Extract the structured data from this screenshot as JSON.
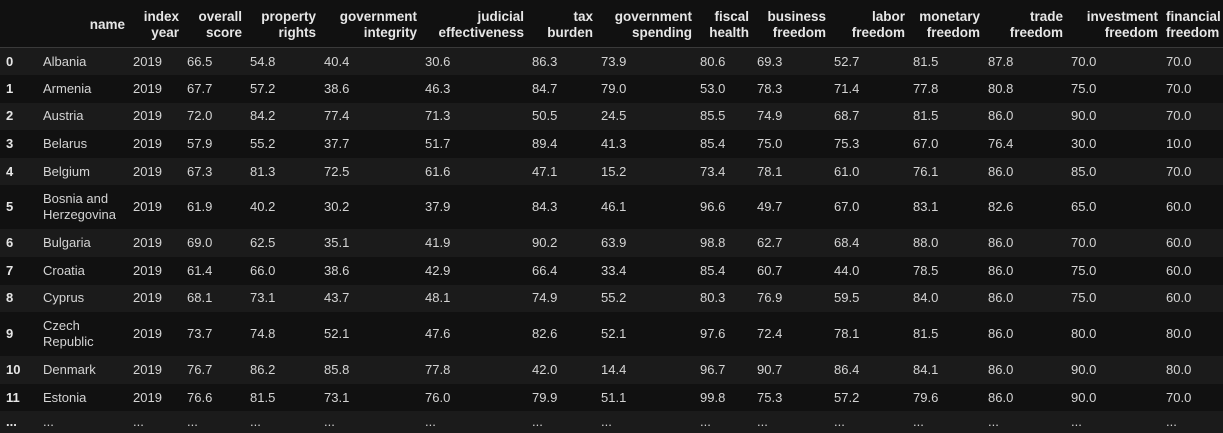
{
  "columns": [
    {
      "key": "idx",
      "label": ""
    },
    {
      "key": "name",
      "label": "name"
    },
    {
      "key": "index_year",
      "label": "index year"
    },
    {
      "key": "overall_score",
      "label": "overall score"
    },
    {
      "key": "property_rights",
      "label": "property rights"
    },
    {
      "key": "government_integrity",
      "label": "government integrity"
    },
    {
      "key": "judicial_effectiveness",
      "label": "judicial effectiveness"
    },
    {
      "key": "tax_burden",
      "label": "tax burden"
    },
    {
      "key": "government_spending",
      "label": "government spending"
    },
    {
      "key": "fiscal_health",
      "label": "fiscal health"
    },
    {
      "key": "business_freedom",
      "label": "business freedom"
    },
    {
      "key": "labor_freedom",
      "label": "labor freedom"
    },
    {
      "key": "monetary_freedom",
      "label": "monetary freedom"
    },
    {
      "key": "trade_freedom",
      "label": "trade freedom"
    },
    {
      "key": "investment_freedom",
      "label": "investment freedom"
    },
    {
      "key": "financial_freedom",
      "label": "financial freedom"
    }
  ],
  "rows": [
    [
      "0",
      "Albania",
      "2019",
      "66.5",
      "54.8",
      "40.4",
      "30.6",
      "86.3",
      "73.9",
      "80.6",
      "69.3",
      "52.7",
      "81.5",
      "87.8",
      "70.0",
      "70.0"
    ],
    [
      "1",
      "Armenia",
      "2019",
      "67.7",
      "57.2",
      "38.6",
      "46.3",
      "84.7",
      "79.0",
      "53.0",
      "78.3",
      "71.4",
      "77.8",
      "80.8",
      "75.0",
      "70.0"
    ],
    [
      "2",
      "Austria",
      "2019",
      "72.0",
      "84.2",
      "77.4",
      "71.3",
      "50.5",
      "24.5",
      "85.5",
      "74.9",
      "68.7",
      "81.5",
      "86.0",
      "90.0",
      "70.0"
    ],
    [
      "3",
      "Belarus",
      "2019",
      "57.9",
      "55.2",
      "37.7",
      "51.7",
      "89.4",
      "41.3",
      "85.4",
      "75.0",
      "75.3",
      "67.0",
      "76.4",
      "30.0",
      "10.0"
    ],
    [
      "4",
      "Belgium",
      "2019",
      "67.3",
      "81.3",
      "72.5",
      "61.6",
      "47.1",
      "15.2",
      "73.4",
      "78.1",
      "61.0",
      "76.1",
      "86.0",
      "85.0",
      "70.0"
    ],
    [
      "5",
      "Bosnia and Herzegovina",
      "2019",
      "61.9",
      "40.2",
      "30.2",
      "37.9",
      "84.3",
      "46.1",
      "96.6",
      "49.7",
      "67.0",
      "83.1",
      "82.6",
      "65.0",
      "60.0"
    ],
    [
      "6",
      "Bulgaria",
      "2019",
      "69.0",
      "62.5",
      "35.1",
      "41.9",
      "90.2",
      "63.9",
      "98.8",
      "62.7",
      "68.4",
      "88.0",
      "86.0",
      "70.0",
      "60.0"
    ],
    [
      "7",
      "Croatia",
      "2019",
      "61.4",
      "66.0",
      "38.6",
      "42.9",
      "66.4",
      "33.4",
      "85.4",
      "60.7",
      "44.0",
      "78.5",
      "86.0",
      "75.0",
      "60.0"
    ],
    [
      "8",
      "Cyprus",
      "2019",
      "68.1",
      "73.1",
      "43.7",
      "48.1",
      "74.9",
      "55.2",
      "80.3",
      "76.9",
      "59.5",
      "84.0",
      "86.0",
      "75.0",
      "60.0"
    ],
    [
      "9",
      "Czech Republic",
      "2019",
      "73.7",
      "74.8",
      "52.1",
      "47.6",
      "82.6",
      "52.1",
      "97.6",
      "72.4",
      "78.1",
      "81.5",
      "86.0",
      "80.0",
      "80.0"
    ],
    [
      "10",
      "Denmark",
      "2019",
      "76.7",
      "86.2",
      "85.8",
      "77.8",
      "42.0",
      "14.4",
      "96.7",
      "90.7",
      "86.4",
      "84.1",
      "86.0",
      "90.0",
      "80.0"
    ],
    [
      "11",
      "Estonia",
      "2019",
      "76.6",
      "81.5",
      "73.1",
      "76.0",
      "79.9",
      "51.1",
      "99.8",
      "75.3",
      "57.2",
      "79.6",
      "86.0",
      "90.0",
      "70.0"
    ]
  ],
  "ellipsis_row": [
    "...",
    "...",
    "...",
    "...",
    "...",
    "...",
    "...",
    "...",
    "...",
    "...",
    "...",
    "...",
    "...",
    "...",
    "...",
    "..."
  ]
}
